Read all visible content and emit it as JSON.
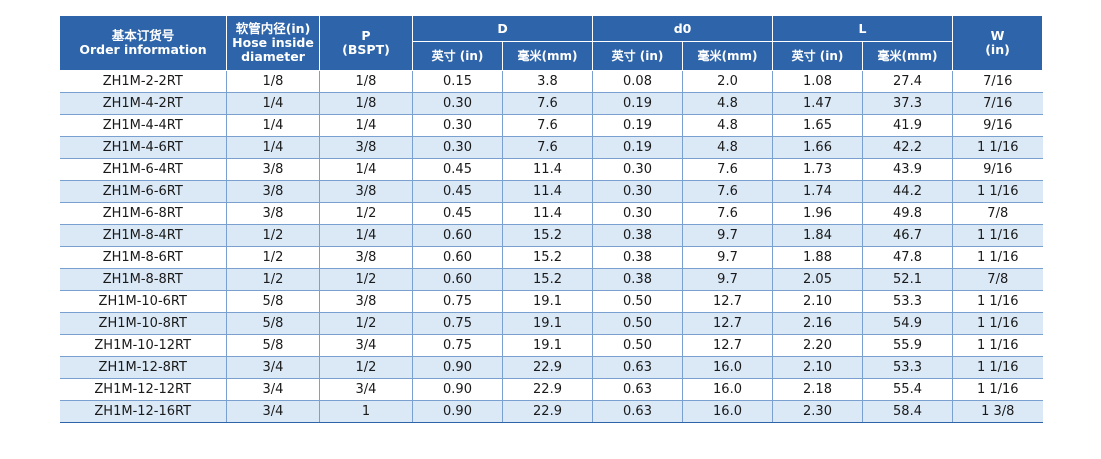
{
  "headers": {
    "order_cn": "基本订货号",
    "order_en": "Order information",
    "hose_cn": "软管内径(in)",
    "hose_en1": "Hose inside",
    "hose_en2": "diameter",
    "p": "P",
    "p_unit": "(BSPT)",
    "d": "D",
    "d0": "d0",
    "l": "L",
    "w": "W",
    "w_unit": "(in)",
    "inch": "英寸 (in)",
    "mm": "毫米(mm)"
  },
  "rows": [
    [
      "ZH1M-2-2RT",
      "1/8",
      "1/8",
      "0.15",
      "3.8",
      "0.08",
      "2.0",
      "1.08",
      "27.4",
      "7/16"
    ],
    [
      "ZH1M-4-2RT",
      "1/4",
      "1/8",
      "0.30",
      "7.6",
      "0.19",
      "4.8",
      "1.47",
      "37.3",
      "7/16"
    ],
    [
      "ZH1M-4-4RT",
      "1/4",
      "1/4",
      "0.30",
      "7.6",
      "0.19",
      "4.8",
      "1.65",
      "41.9",
      "9/16"
    ],
    [
      "ZH1M-4-6RT",
      "1/4",
      "3/8",
      "0.30",
      "7.6",
      "0.19",
      "4.8",
      "1.66",
      "42.2",
      "1 1/16"
    ],
    [
      "ZH1M-6-4RT",
      "3/8",
      "1/4",
      "0.45",
      "11.4",
      "0.30",
      "7.6",
      "1.73",
      "43.9",
      "9/16"
    ],
    [
      "ZH1M-6-6RT",
      "3/8",
      "3/8",
      "0.45",
      "11.4",
      "0.30",
      "7.6",
      "1.74",
      "44.2",
      "1 1/16"
    ],
    [
      "ZH1M-6-8RT",
      "3/8",
      "1/2",
      "0.45",
      "11.4",
      "0.30",
      "7.6",
      "1.96",
      "49.8",
      "7/8"
    ],
    [
      "ZH1M-8-4RT",
      "1/2",
      "1/4",
      "0.60",
      "15.2",
      "0.38",
      "9.7",
      "1.84",
      "46.7",
      "1 1/16"
    ],
    [
      "ZH1M-8-6RT",
      "1/2",
      "3/8",
      "0.60",
      "15.2",
      "0.38",
      "9.7",
      "1.88",
      "47.8",
      "1 1/16"
    ],
    [
      "ZH1M-8-8RT",
      "1/2",
      "1/2",
      "0.60",
      "15.2",
      "0.38",
      "9.7",
      "2.05",
      "52.1",
      "7/8"
    ],
    [
      "ZH1M-10-6RT",
      "5/8",
      "3/8",
      "0.75",
      "19.1",
      "0.50",
      "12.7",
      "2.10",
      "53.3",
      "1 1/16"
    ],
    [
      "ZH1M-10-8RT",
      "5/8",
      "1/2",
      "0.75",
      "19.1",
      "0.50",
      "12.7",
      "2.16",
      "54.9",
      "1 1/16"
    ],
    [
      "ZH1M-10-12RT",
      "5/8",
      "3/4",
      "0.75",
      "19.1",
      "0.50",
      "12.7",
      "2.20",
      "55.9",
      "1 1/16"
    ],
    [
      "ZH1M-12-8RT",
      "3/4",
      "1/2",
      "0.90",
      "22.9",
      "0.63",
      "16.0",
      "2.10",
      "53.3",
      "1 1/16"
    ],
    [
      "ZH1M-12-12RT",
      "3/4",
      "3/4",
      "0.90",
      "22.9",
      "0.63",
      "16.0",
      "2.18",
      "55.4",
      "1 1/16"
    ],
    [
      "ZH1M-12-16RT",
      "3/4",
      "1",
      "0.90",
      "22.9",
      "0.63",
      "16.0",
      "2.30",
      "58.4",
      "1 3/8"
    ]
  ],
  "colors": {
    "header_bg": "#2e64a9",
    "alt_row_bg": "#dbe9f7",
    "header_text": "#ffffff"
  }
}
